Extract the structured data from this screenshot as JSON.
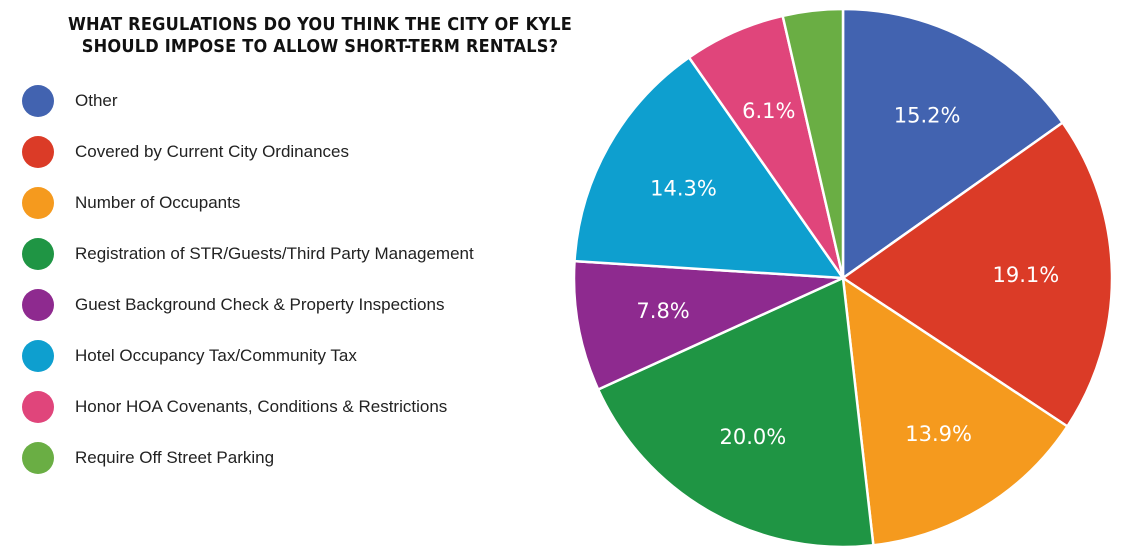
{
  "title": {
    "line1": "WHAT REGULATIONS DO YOU THINK THE CITY OF KYLE",
    "line2": "SHOULD IMPOSE TO ALLOW SHORT-TERM RENTALS?"
  },
  "legend": {
    "items": [
      {
        "label": "Other",
        "color": "#4263b0"
      },
      {
        "label": "Covered by Current City Ordinances",
        "color": "#db3b27"
      },
      {
        "label": "Number of Occupants",
        "color": "#f59a1e"
      },
      {
        "label": "Registration of STR/Guests/Third Party Management",
        "color": "#1f9544"
      },
      {
        "label": "Guest Background Check & Property Inspections",
        "color": "#8e2a8f"
      },
      {
        "label": "Hotel Occupancy Tax/Community Tax",
        "color": "#0e9fcf"
      },
      {
        "label": "Honor HOA Covenants, Conditions & Restrictions",
        "color": "#e0457b"
      },
      {
        "label": "Require Off Street Parking",
        "color": "#6aae44"
      }
    ]
  },
  "chart_data": {
    "type": "pie",
    "title": "WHAT REGULATIONS DO YOU THINK THE CITY OF KYLE SHOULD IMPOSE TO ALLOW SHORT-TERM RENTALS?",
    "categories": [
      "Other",
      "Covered by Current City Ordinances",
      "Number of Occupants",
      "Registration of STR/Guests/Third Party Management",
      "Guest Background Check & Property Inspections",
      "Hotel Occupancy Tax/Community Tax",
      "Honor HOA Covenants, Conditions & Restrictions",
      "Require Off Street Parking"
    ],
    "values": [
      15.2,
      19.1,
      13.9,
      20.0,
      7.8,
      14.3,
      6.1,
      3.6
    ],
    "labels": [
      "15.2%",
      "19.1%",
      "13.9%",
      "20.0%",
      "7.8%",
      "14.3%",
      "6.1%",
      ""
    ],
    "colors": [
      "#4263b0",
      "#db3b27",
      "#f59a1e",
      "#1f9544",
      "#8e2a8f",
      "#0e9fcf",
      "#e0457b",
      "#6aae44"
    ],
    "legend_position": "left"
  }
}
